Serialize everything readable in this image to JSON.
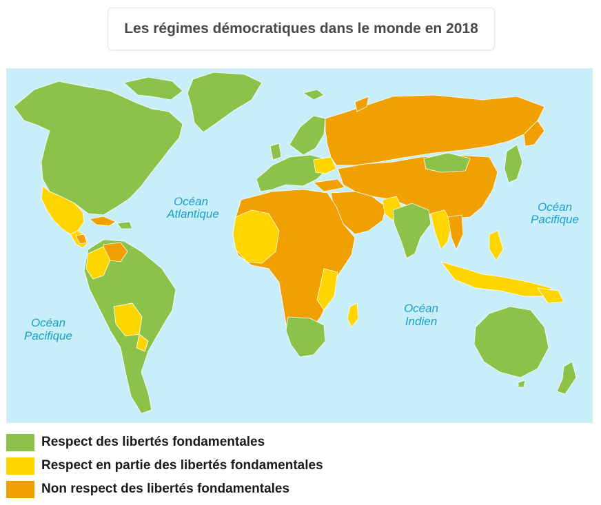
{
  "title": "Les régimes démocratiques dans le monde en 2018",
  "colors": {
    "ocean": "#c8eefa",
    "green": "#8bc34a",
    "yellow": "#ffd500",
    "orange": "#f0a000",
    "border": "#ffffff",
    "ocean_label": "#1aa0c8"
  },
  "oceans": {
    "atlantic": [
      "Océan",
      "Atlantique"
    ],
    "pacific_east": [
      "Océan",
      "Pacifique"
    ],
    "pacific_west": [
      "Océan",
      "Pacifique"
    ],
    "indian": [
      "Océan",
      "Indien"
    ]
  },
  "legend": [
    {
      "key": "green",
      "label": "Respect des libertés fondamentales",
      "color": "#8bc34a"
    },
    {
      "key": "yellow",
      "label": "Respect en partie des libertés fondamentales",
      "color": "#ffd500"
    },
    {
      "key": "orange",
      "label": "Non respect des libertés fondamentales",
      "color": "#f0a000"
    }
  ]
}
